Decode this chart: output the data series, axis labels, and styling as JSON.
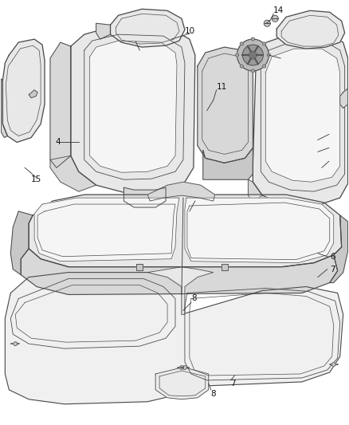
{
  "background_color": "#ffffff",
  "line_color": "#4a4a4a",
  "fill_light": "#e8e8e8",
  "fill_mid": "#d8d8d8",
  "fill_dark": "#c8c8c8",
  "fill_white": "#f5f5f5",
  "label_fontsize": 7.5
}
